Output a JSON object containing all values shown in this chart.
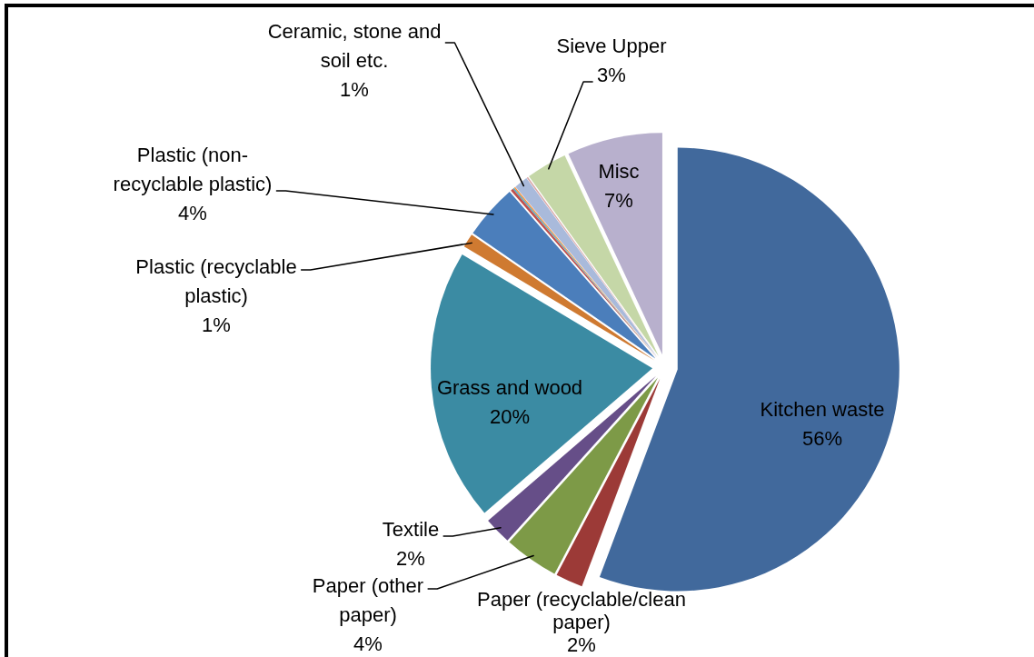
{
  "chart_data": {
    "type": "pie",
    "categories": [
      "Kitchen waste",
      "Paper (recyclable/clean paper)",
      "Paper (other paper)",
      "Textile",
      "Grass and wood",
      "Plastic (recyclable plastic)",
      "Plastic (non-recyclable plastic)",
      null,
      null,
      null,
      "Ceramic, stone and soil etc.",
      null,
      "Sieve Upper",
      "Misc"
    ],
    "values": [
      56,
      2,
      4,
      2,
      20,
      1,
      4,
      0.2,
      0.1,
      0.1,
      1,
      0.1,
      3,
      7
    ],
    "colors": [
      "#41699c",
      "#9c3a37",
      "#7d9a47",
      "#664e88",
      "#3b8ba3",
      "#cf7a31",
      "#4b7ebb",
      "#c0504d",
      "#4bacc6",
      "#f79646",
      "#a9badb",
      "#d9a7a6",
      "#c5d7a7",
      "#b8b0cd"
    ],
    "value_labels": [
      "56%",
      "2%",
      "4%",
      "2%",
      "20%",
      "1%",
      "4%",
      null,
      null,
      null,
      "1%",
      null,
      "3%",
      "7%"
    ]
  }
}
